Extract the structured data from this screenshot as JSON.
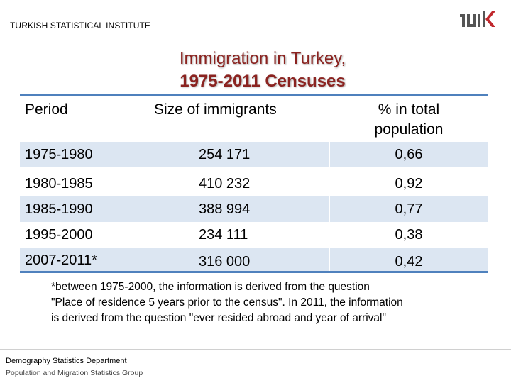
{
  "header": {
    "organization": "TURKISH STATISTICAL INSTITUTE",
    "logo_text": "TÜIK"
  },
  "title": {
    "line1": "Immigration in Turkey,",
    "line2": "1975-2011 Censuses"
  },
  "table": {
    "columns": {
      "period": "Period",
      "size": "Size of immigrants",
      "pct_line1": "% in total",
      "pct_line2": "population"
    },
    "rows": [
      {
        "period": "1975-1980",
        "size": "254 171",
        "pct": "0,66"
      },
      {
        "period": "1980-1985",
        "size": "410 232",
        "pct": "0,92"
      },
      {
        "period": "1985-1990",
        "size": "388 994",
        "pct": "0,77"
      },
      {
        "period": "1995-2000",
        "size": "234 111",
        "pct": "0,38"
      },
      {
        "period": "2007-2011*",
        "size": "316 000",
        "pct": "0,42"
      }
    ]
  },
  "footnote": {
    "line1": "*between 1975-2000, the information is derived from the question",
    "line2": "\"Place of residence 5 years prior to the census\". In 2011, the information",
    "line3": "is derived from the question \"ever resided abroad and year of arrival\""
  },
  "footer": {
    "department": "Demography Statistics Department",
    "group": "Population and Migration Statistics Group"
  },
  "colors": {
    "title": "#8b2320",
    "table_rule": "#4f81bd",
    "row_shade": "#dce6f2"
  }
}
